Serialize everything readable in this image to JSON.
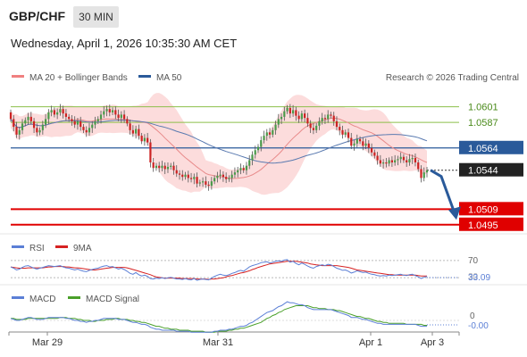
{
  "header": {
    "symbol": "GBP/CHF",
    "interval": "30 MIN",
    "datetime": "Wednesday, April 1, 2026 10:35:30 AM CET"
  },
  "main_legend": {
    "items": [
      {
        "label": "MA 20 + Bollinger Bands",
        "color": "#f08080"
      },
      {
        "label": "MA 50",
        "color": "#2a5a9a"
      }
    ],
    "credit": "Research © 2026 Trading Central"
  },
  "colors": {
    "pivot": "#2a5a9a",
    "resistance": "#8cbf4a",
    "support": "#e00000",
    "last": "#222222",
    "candle_up": "#4a9a4a",
    "candle_down": "#cc2222",
    "bollinger_fill": "#fbd3d3",
    "ma20": "#e88a8a",
    "ma50": "#5a7ab0",
    "rsi": "#5b7fd6",
    "rsi_ma": "#d62222",
    "macd": "#5b7fd6",
    "macd_signal": "#4aa02a",
    "arrow": "#2a5a9a"
  },
  "levels": [
    {
      "value": "1.0601",
      "kind": "resistance"
    },
    {
      "value": "1.0587",
      "kind": "resistance"
    },
    {
      "value": "1.0564",
      "kind": "pivot"
    },
    {
      "value": "1.0544",
      "kind": "last"
    },
    {
      "value": "1.0509",
      "kind": "support"
    },
    {
      "value": "1.0495",
      "kind": "support"
    }
  ],
  "rsi_panel": {
    "legend": [
      {
        "label": "RSI",
        "color": "#5b7fd6"
      },
      {
        "label": "9MA",
        "color": "#d62222"
      }
    ],
    "level_labels": [
      "70",
      "30"
    ],
    "value": "33.09"
  },
  "macd_panel": {
    "legend": [
      {
        "label": "MACD",
        "color": "#5b7fd6"
      },
      {
        "label": "MACD Signal",
        "color": "#4aa02a"
      }
    ],
    "zero_label": "0",
    "value": "-0.00"
  },
  "chart_data": {
    "type": "candlestick",
    "title": "",
    "pair": "GBP/CHF",
    "timeframe": "30 MIN",
    "x_tick_labels": [
      "Mar 29",
      "Mar 31",
      "Apr 1",
      "Apr 3"
    ],
    "ylim": [
      1.049,
      1.062
    ],
    "y_price_labels": [
      1.0601,
      1.0587,
      1.0564,
      1.0544,
      1.0509,
      1.0495
    ],
    "candles_close": [
      1.059,
      1.0583,
      1.0576,
      1.058,
      1.0586,
      1.0589,
      1.0592,
      1.0588,
      1.0582,
      1.0578,
      1.058,
      1.0585,
      1.059,
      1.0596,
      1.0598,
      1.0594,
      1.0596,
      1.0599,
      1.0595,
      1.0592,
      1.059,
      1.0588,
      1.0585,
      1.0588,
      1.0583,
      1.058,
      1.0578,
      1.0582,
      1.0585,
      1.0588,
      1.059,
      1.0594,
      1.0597,
      1.0599,
      1.0596,
      1.0598,
      1.0594,
      1.0591,
      1.0594,
      1.059,
      1.0586,
      1.058,
      1.0577,
      1.0581,
      1.0575,
      1.057,
      1.0573,
      1.0569,
      1.0551,
      1.0546,
      1.0548,
      1.0546,
      1.0548,
      1.0545,
      1.0547,
      1.0548,
      1.0544,
      1.0541,
      1.054,
      1.0538,
      1.054,
      1.0537,
      1.0536,
      1.0538,
      1.0532,
      1.0533,
      1.0534,
      1.0531,
      1.053,
      1.0534,
      1.0537,
      1.0539,
      1.054,
      1.0538,
      1.0536,
      1.0537,
      1.054,
      1.0542,
      1.0544,
      1.0546,
      1.0544,
      1.0548,
      1.0553,
      1.0558,
      1.0562,
      1.0565,
      1.0571,
      1.0575,
      1.0578,
      1.0576,
      1.058,
      1.0585,
      1.059,
      1.0592,
      1.0597,
      1.06,
      1.0595,
      1.0598,
      1.0593,
      1.059,
      1.0595,
      1.0591,
      1.0586,
      1.0582,
      1.058,
      1.0584,
      1.0588,
      1.0591,
      1.059,
      1.0594,
      1.0593,
      1.0588,
      1.0583,
      1.058,
      1.0576,
      1.0578,
      1.0573,
      1.0566,
      1.0568,
      1.0572,
      1.057,
      1.0566,
      1.0568,
      1.0564,
      1.056,
      1.0557,
      1.0553,
      1.055,
      1.0551,
      1.055,
      1.0553,
      1.0551,
      1.0553,
      1.0554,
      1.0556,
      1.0553,
      1.0551,
      1.0554,
      1.0555,
      1.0551,
      1.0545,
      1.0537,
      1.0542,
      1.0544
    ],
    "rsi": [
      55,
      52,
      48,
      50,
      54,
      57,
      58,
      55,
      52,
      50,
      52,
      54,
      56,
      58,
      57,
      56,
      57,
      58,
      55,
      53,
      52,
      50,
      48,
      50,
      47,
      45,
      44,
      47,
      49,
      51,
      52,
      55,
      57,
      58,
      55,
      56,
      53,
      50,
      52,
      49,
      45,
      40,
      38,
      42,
      37,
      34,
      36,
      33,
      28,
      27,
      29,
      28,
      30,
      28,
      30,
      31,
      29,
      27,
      27,
      26,
      28,
      26,
      25,
      28,
      24,
      26,
      27,
      26,
      25,
      29,
      33,
      36,
      38,
      36,
      35,
      37,
      40,
      42,
      45,
      47,
      45,
      50,
      55,
      58,
      60,
      62,
      65,
      66,
      67,
      64,
      66,
      68,
      69,
      68,
      71,
      72,
      66,
      68,
      63,
      60,
      64,
      61,
      57,
      54,
      52,
      56,
      58,
      60,
      58,
      61,
      60,
      56,
      52,
      50,
      47,
      48,
      45,
      41,
      43,
      46,
      44,
      42,
      43,
      40,
      38,
      37,
      35,
      34,
      35,
      34,
      36,
      35,
      36,
      37,
      38,
      36,
      35,
      37,
      38,
      35,
      32,
      28,
      31,
      33.09
    ],
    "rsi_ma": [
      55,
      54,
      53,
      52,
      52,
      52,
      53,
      53,
      53,
      53,
      53,
      53,
      54,
      55,
      55,
      56,
      56,
      56,
      56,
      55,
      55,
      54,
      53,
      53,
      52,
      51,
      50,
      49,
      48,
      48,
      49,
      50,
      51,
      52,
      53,
      54,
      54,
      54,
      54,
      54,
      53,
      51,
      49,
      47,
      45,
      43,
      41,
      39,
      37,
      34,
      32,
      31,
      30,
      29,
      29,
      29,
      29,
      29,
      29,
      28,
      28,
      28,
      28,
      28,
      27,
      27,
      27,
      27,
      26,
      27,
      27,
      28,
      29,
      30,
      32,
      34,
      35,
      37,
      39,
      41,
      42,
      44,
      46,
      49,
      51,
      54,
      56,
      58,
      60,
      62,
      63,
      64,
      65,
      66,
      67,
      68,
      68,
      68,
      68,
      67,
      66,
      65,
      64,
      62,
      61,
      60,
      59,
      58,
      58,
      58,
      58,
      58,
      58,
      57,
      56,
      55,
      54,
      52,
      50,
      48,
      47,
      46,
      45,
      44,
      43,
      42,
      41,
      40,
      39,
      38,
      37,
      37,
      36,
      36,
      36,
      36,
      36,
      36,
      36,
      36,
      35,
      34,
      34,
      34
    ],
    "macd": [
      0.0002,
      0.0001,
      0.0,
      0.0,
      0.0001,
      0.0002,
      0.0003,
      0.0003,
      0.0002,
      0.0001,
      0.0001,
      0.0001,
      0.0002,
      0.0003,
      0.0003,
      0.0003,
      0.0003,
      0.0003,
      0.0003,
      0.0002,
      0.0002,
      0.0001,
      0.0,
      0.0,
      -0.0001,
      -0.0001,
      -0.0002,
      -0.0001,
      -0.0001,
      0.0,
      0.0,
      0.0001,
      0.0002,
      0.0002,
      0.0002,
      0.0002,
      0.0002,
      0.0001,
      0.0001,
      0.0001,
      0.0,
      -0.0001,
      -0.0002,
      -0.0002,
      -0.0003,
      -0.0004,
      -0.0004,
      -0.0005,
      -0.0007,
      -0.0008,
      -0.0009,
      -0.0009,
      -0.001,
      -0.001,
      -0.001,
      -0.001,
      -0.001,
      -0.0011,
      -0.0011,
      -0.0011,
      -0.0011,
      -0.0011,
      -0.0012,
      -0.0012,
      -0.0012,
      -0.0012,
      -0.0012,
      -0.0012,
      -0.0012,
      -0.0012,
      -0.0011,
      -0.0011,
      -0.001,
      -0.001,
      -0.001,
      -0.0009,
      -0.0009,
      -0.0008,
      -0.0007,
      -0.0006,
      -0.0006,
      -0.0005,
      -0.0003,
      -0.0002,
      0.0,
      0.0002,
      0.0004,
      0.0006,
      0.0008,
      0.0009,
      0.001,
      0.0012,
      0.0014,
      0.0015,
      0.0017,
      0.0019,
      0.0018,
      0.0018,
      0.0017,
      0.0016,
      0.0016,
      0.0015,
      0.0013,
      0.0012,
      0.0011,
      0.0011,
      0.0011,
      0.0011,
      0.0011,
      0.0011,
      0.0011,
      0.001,
      0.0009,
      0.0008,
      0.0007,
      0.0006,
      0.0005,
      0.0003,
      0.0003,
      0.0003,
      0.0002,
      0.0001,
      0.0001,
      0.0,
      -0.0001,
      -0.0002,
      -0.0003,
      -0.0003,
      -0.0004,
      -0.0004,
      -0.0004,
      -0.0004,
      -0.0004,
      -0.0004,
      -0.0004,
      -0.0004,
      -0.0004,
      -0.0004,
      -0.0004,
      -0.0004,
      -0.0005,
      -0.0006,
      -0.0006,
      -0.0006
    ],
    "macd_signal": [
      0.0002,
      0.0002,
      0.0001,
      0.0001,
      0.0001,
      0.0001,
      0.0002,
      0.0002,
      0.0002,
      0.0002,
      0.0002,
      0.0002,
      0.0002,
      0.0002,
      0.0002,
      0.0002,
      0.0002,
      0.0003,
      0.0003,
      0.0003,
      0.0002,
      0.0002,
      0.0002,
      0.0001,
      0.0001,
      0.0,
      0.0,
      0.0,
      -0.0001,
      -0.0001,
      0.0,
      0.0,
      0.0,
      0.0001,
      0.0001,
      0.0001,
      0.0002,
      0.0002,
      0.0001,
      0.0001,
      0.0001,
      0.0,
      0.0,
      -0.0001,
      -0.0001,
      -0.0002,
      -0.0002,
      -0.0003,
      -0.0004,
      -0.0005,
      -0.0006,
      -0.0006,
      -0.0007,
      -0.0008,
      -0.0008,
      -0.0009,
      -0.0009,
      -0.0009,
      -0.001,
      -0.001,
      -0.001,
      -0.001,
      -0.0011,
      -0.0011,
      -0.0011,
      -0.0011,
      -0.0011,
      -0.0012,
      -0.0012,
      -0.0012,
      -0.0012,
      -0.0011,
      -0.0011,
      -0.0011,
      -0.0011,
      -0.001,
      -0.001,
      -0.0009,
      -0.0009,
      -0.0008,
      -0.0008,
      -0.0007,
      -0.0006,
      -0.0005,
      -0.0004,
      -0.0003,
      -0.0002,
      0.0,
      0.0002,
      0.0003,
      0.0005,
      0.0006,
      0.0008,
      0.0009,
      0.0011,
      0.0012,
      0.0013,
      0.0014,
      0.0015,
      0.0015,
      0.0015,
      0.0015,
      0.0015,
      0.0014,
      0.0013,
      0.0013,
      0.0012,
      0.0012,
      0.0012,
      0.0011,
      0.0011,
      0.0011,
      0.001,
      0.001,
      0.0009,
      0.0008,
      0.0007,
      0.0006,
      0.0005,
      0.0004,
      0.0004,
      0.0003,
      0.0002,
      0.0002,
      0.0001,
      0.0,
      -0.0001,
      -0.0001,
      -0.0002,
      -0.0002,
      -0.0003,
      -0.0003,
      -0.0003,
      -0.0003,
      -0.0003,
      -0.0003,
      -0.0004,
      -0.0004,
      -0.0004,
      -0.0004,
      -0.0004,
      -0.0004,
      -0.0005,
      -0.0005
    ]
  }
}
